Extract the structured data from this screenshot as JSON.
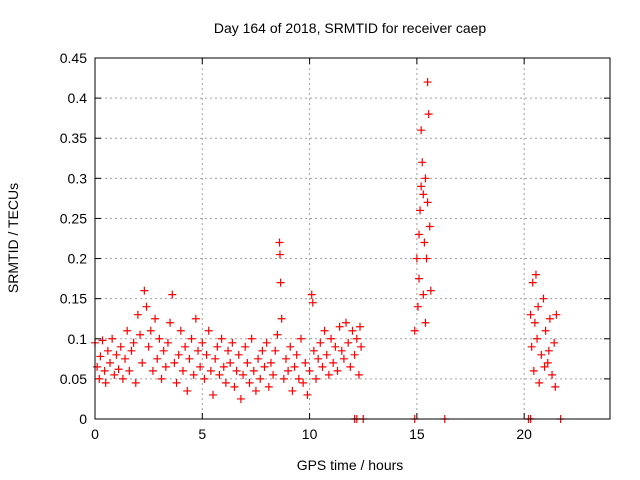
{
  "chart_data": {
    "type": "scatter",
    "title": "Day 164 of 2018, SRMTID for receiver caep",
    "xlabel": "GPS time / hours",
    "ylabel": "SRMTID / TECUs",
    "xlim": [
      0,
      24
    ],
    "ylim": [
      0,
      0.45
    ],
    "grid": true,
    "marker": "+",
    "color": "#ff0000",
    "x_ticks": [
      0,
      5,
      10,
      15,
      20
    ],
    "x_tick_labels": [
      "0",
      "5",
      "10",
      "15",
      "20"
    ],
    "y_ticks": [
      0,
      0.05,
      0.1,
      0.15,
      0.2,
      0.25,
      0.3,
      0.35,
      0.4,
      0.45
    ],
    "y_tick_labels": [
      "0",
      "0.05",
      "0.1",
      "0.15",
      "0.2",
      "0.25",
      "0.3",
      "0.35",
      "0.4",
      "0.45"
    ],
    "series": [
      {
        "name": "SRMTID",
        "points": [
          [
            0.0,
            0.095
          ],
          [
            0.1,
            0.065
          ],
          [
            0.2,
            0.05
          ],
          [
            0.25,
            0.078
          ],
          [
            0.35,
            0.098
          ],
          [
            0.45,
            0.06
          ],
          [
            0.5,
            0.045
          ],
          [
            0.6,
            0.085
          ],
          [
            0.7,
            0.07
          ],
          [
            0.8,
            0.1
          ],
          [
            0.9,
            0.055
          ],
          [
            1.0,
            0.08
          ],
          [
            1.1,
            0.062
          ],
          [
            1.2,
            0.09
          ],
          [
            1.3,
            0.05
          ],
          [
            1.4,
            0.075
          ],
          [
            1.5,
            0.11
          ],
          [
            1.6,
            0.06
          ],
          [
            1.7,
            0.085
          ],
          [
            1.8,
            0.095
          ],
          [
            1.9,
            0.045
          ],
          [
            2.0,
            0.13
          ],
          [
            2.1,
            0.105
          ],
          [
            2.2,
            0.07
          ],
          [
            2.3,
            0.16
          ],
          [
            2.4,
            0.14
          ],
          [
            2.5,
            0.09
          ],
          [
            2.6,
            0.11
          ],
          [
            2.7,
            0.06
          ],
          [
            2.8,
            0.125
          ],
          [
            2.9,
            0.075
          ],
          [
            3.0,
            0.1
          ],
          [
            3.1,
            0.05
          ],
          [
            3.2,
            0.085
          ],
          [
            3.3,
            0.065
          ],
          [
            3.4,
            0.095
          ],
          [
            3.5,
            0.12
          ],
          [
            3.6,
            0.155
          ],
          [
            3.7,
            0.07
          ],
          [
            3.8,
            0.045
          ],
          [
            3.9,
            0.08
          ],
          [
            4.0,
            0.11
          ],
          [
            4.1,
            0.06
          ],
          [
            4.2,
            0.09
          ],
          [
            4.3,
            0.035
          ],
          [
            4.4,
            0.075
          ],
          [
            4.5,
            0.1
          ],
          [
            4.6,
            0.055
          ],
          [
            4.7,
            0.125
          ],
          [
            4.8,
            0.085
          ],
          [
            4.9,
            0.065
          ],
          [
            5.0,
            0.095
          ],
          [
            5.1,
            0.05
          ],
          [
            5.2,
            0.08
          ],
          [
            5.3,
            0.11
          ],
          [
            5.4,
            0.06
          ],
          [
            5.5,
            0.03
          ],
          [
            5.6,
            0.075
          ],
          [
            5.7,
            0.09
          ],
          [
            5.8,
            0.055
          ],
          [
            5.9,
            0.1
          ],
          [
            6.0,
            0.065
          ],
          [
            6.1,
            0.045
          ],
          [
            6.2,
            0.085
          ],
          [
            6.3,
            0.07
          ],
          [
            6.4,
            0.095
          ],
          [
            6.5,
            0.04
          ],
          [
            6.6,
            0.06
          ],
          [
            6.7,
            0.08
          ],
          [
            6.8,
            0.025
          ],
          [
            6.9,
            0.055
          ],
          [
            7.0,
            0.09
          ],
          [
            7.1,
            0.07
          ],
          [
            7.2,
            0.045
          ],
          [
            7.3,
            0.1
          ],
          [
            7.4,
            0.06
          ],
          [
            7.5,
            0.035
          ],
          [
            7.6,
            0.075
          ],
          [
            7.7,
            0.05
          ],
          [
            7.8,
            0.085
          ],
          [
            7.9,
            0.065
          ],
          [
            8.0,
            0.095
          ],
          [
            8.1,
            0.04
          ],
          [
            8.2,
            0.07
          ],
          [
            8.3,
            0.055
          ],
          [
            8.4,
            0.085
          ],
          [
            8.5,
            0.105
          ],
          [
            8.6,
            0.22
          ],
          [
            8.62,
            0.205
          ],
          [
            8.65,
            0.17
          ],
          [
            8.7,
            0.125
          ],
          [
            8.8,
            0.05
          ],
          [
            8.9,
            0.075
          ],
          [
            9.0,
            0.06
          ],
          [
            9.1,
            0.09
          ],
          [
            9.2,
            0.035
          ],
          [
            9.3,
            0.065
          ],
          [
            9.4,
            0.08
          ],
          [
            9.5,
            0.05
          ],
          [
            9.6,
            0.1
          ],
          [
            9.7,
            0.045
          ],
          [
            9.8,
            0.07
          ],
          [
            9.9,
            0.03
          ],
          [
            10.0,
            0.06
          ],
          [
            10.1,
            0.155
          ],
          [
            10.15,
            0.145
          ],
          [
            10.2,
            0.085
          ],
          [
            10.3,
            0.05
          ],
          [
            10.4,
            0.075
          ],
          [
            10.5,
            0.095
          ],
          [
            10.6,
            0.065
          ],
          [
            10.7,
            0.11
          ],
          [
            10.8,
            0.08
          ],
          [
            10.9,
            0.055
          ],
          [
            11.0,
            0.1
          ],
          [
            11.1,
            0.07
          ],
          [
            11.2,
            0.09
          ],
          [
            11.3,
            0.06
          ],
          [
            11.4,
            0.115
          ],
          [
            11.5,
            0.085
          ],
          [
            11.6,
            0.075
          ],
          [
            11.7,
            0.12
          ],
          [
            11.8,
            0.095
          ],
          [
            11.9,
            0.065
          ],
          [
            12.0,
            0.11
          ],
          [
            12.1,
            0.08
          ],
          [
            12.2,
            0.1
          ],
          [
            12.3,
            0.055
          ],
          [
            12.35,
            0.115
          ],
          [
            12.4,
            0.09
          ],
          [
            14.9,
            0.11
          ],
          [
            15.0,
            0.2
          ],
          [
            15.05,
            0.14
          ],
          [
            15.1,
            0.23
          ],
          [
            15.15,
            0.26
          ],
          [
            15.2,
            0.29
          ],
          [
            15.25,
            0.32
          ],
          [
            15.3,
            0.28
          ],
          [
            15.35,
            0.22
          ],
          [
            15.4,
            0.3
          ],
          [
            15.45,
            0.2
          ],
          [
            15.5,
            0.42
          ],
          [
            15.55,
            0.38
          ],
          [
            15.6,
            0.24
          ],
          [
            15.65,
            0.16
          ],
          [
            15.2,
            0.36
          ],
          [
            15.3,
            0.155
          ],
          [
            15.4,
            0.12
          ],
          [
            15.1,
            0.175
          ],
          [
            15.5,
            0.27
          ],
          [
            20.3,
            0.13
          ],
          [
            20.35,
            0.09
          ],
          [
            20.4,
            0.17
          ],
          [
            20.45,
            0.06
          ],
          [
            20.5,
            0.12
          ],
          [
            20.55,
            0.18
          ],
          [
            20.6,
            0.1
          ],
          [
            20.7,
            0.045
          ],
          [
            20.8,
            0.08
          ],
          [
            20.9,
            0.15
          ],
          [
            21.0,
            0.11
          ],
          [
            21.1,
            0.07
          ],
          [
            21.2,
            0.125
          ],
          [
            21.3,
            0.055
          ],
          [
            21.4,
            0.095
          ],
          [
            21.45,
            0.04
          ],
          [
            21.5,
            0.13
          ],
          [
            20.65,
            0.14
          ],
          [
            20.95,
            0.065
          ],
          [
            21.15,
            0.085
          ],
          [
            12.1,
            0.0
          ],
          [
            12.2,
            0.0
          ],
          [
            12.5,
            0.0
          ],
          [
            14.9,
            0.0
          ],
          [
            16.3,
            0.0
          ],
          [
            20.2,
            0.0
          ],
          [
            20.3,
            0.0
          ],
          [
            21.7,
            0.0
          ]
        ]
      }
    ]
  }
}
